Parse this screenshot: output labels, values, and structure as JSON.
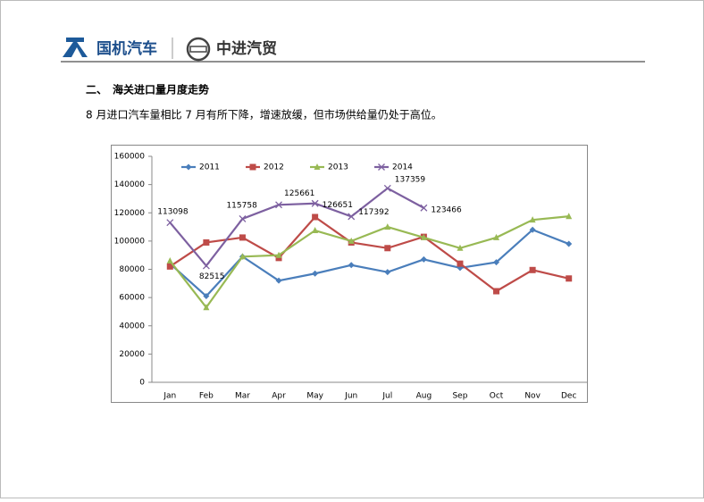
{
  "header": {
    "brand1": "国机汽车",
    "brand2": "中进汽贸"
  },
  "section_title": "二、　海关进口量月度走势",
  "paragraph": "8 月进口汽车量相比 7 月有所下降，增速放缓，但市场供给量仍处于高位。",
  "chart_data": {
    "type": "line",
    "categories": [
      "Jan",
      "Feb",
      "Mar",
      "Apr",
      "May",
      "Jun",
      "Jul",
      "Aug",
      "Sep",
      "Oct",
      "Nov",
      "Dec"
    ],
    "series": [
      {
        "name": "2011",
        "color": "#4a7ebb",
        "marker": "diamond",
        "values": [
          84000,
          61000,
          89000,
          72000,
          77000,
          83000,
          78000,
          87000,
          81000,
          85000,
          108000,
          98000
        ]
      },
      {
        "name": "2012",
        "color": "#be4b48",
        "marker": "square",
        "values": [
          82000,
          99000,
          102500,
          88000,
          117000,
          99000,
          95000,
          103000,
          84000,
          64500,
          79500,
          73500
        ]
      },
      {
        "name": "2013",
        "color": "#98b954",
        "marker": "triangle",
        "values": [
          86000,
          53000,
          89000,
          90000,
          107500,
          100000,
          110000,
          102500,
          95000,
          102500,
          115000,
          117500
        ]
      },
      {
        "name": "2014",
        "color": "#7d60a0",
        "marker": "x",
        "values": [
          113098,
          82515,
          115758,
          125661,
          126651,
          117392,
          137359,
          123466,
          null,
          null,
          null,
          null
        ],
        "data_labels": true
      }
    ],
    "ylim": [
      0,
      160000
    ],
    "yticks": [
      0,
      20000,
      40000,
      60000,
      80000,
      100000,
      120000,
      140000,
      160000
    ],
    "legend": "top"
  }
}
